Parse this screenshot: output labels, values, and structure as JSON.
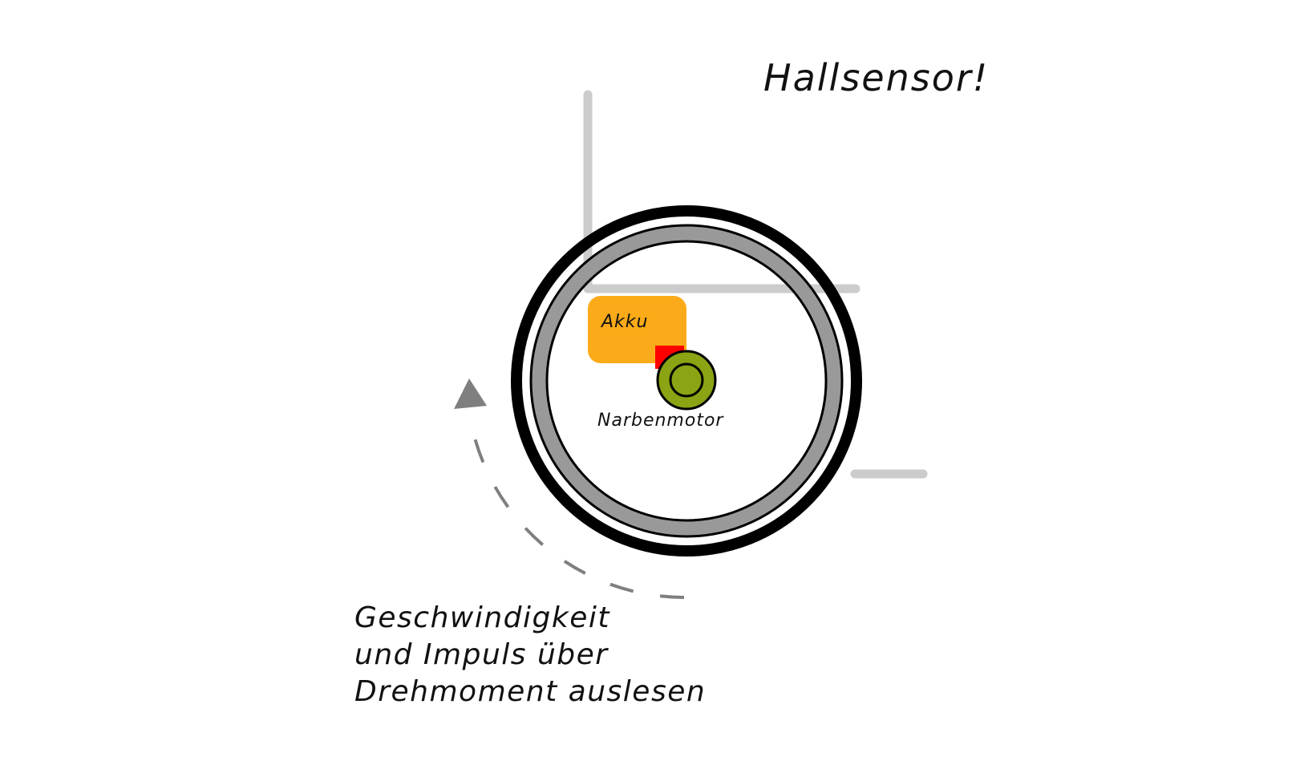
{
  "diagram": {
    "title": "Hallsensor!",
    "battery_label": "Akku",
    "motor_label": "Narbenmotor",
    "caption": [
      "Geschwindigkeit",
      "und Impuls über",
      "Drehmoment auslesen"
    ]
  },
  "colors": {
    "tire": "#000000",
    "rim": "#999999",
    "frame": "#cccccc",
    "battery": "#fbab19",
    "sensor": "#ff0000",
    "motor": "#8aa414",
    "arrow": "#7f7f7f"
  }
}
